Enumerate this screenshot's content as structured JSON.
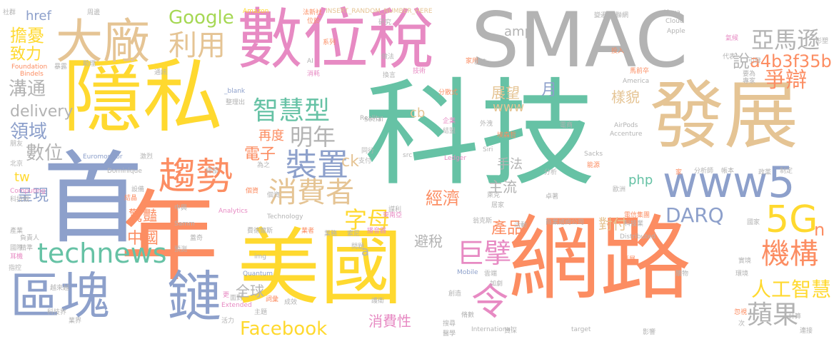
{
  "palette": {
    "teal": "#66c2a5",
    "orange": "#fc8d62",
    "blue": "#8da0cb",
    "pink": "#e78ac3",
    "green": "#a6d854",
    "yellow": "#ffd92f",
    "tan": "#e5c494",
    "gray": "#b3b3b3"
  },
  "words": {
    "w01": "科技",
    "w02": "SMAC",
    "w03": "網路",
    "w04": "美國",
    "w05": "年",
    "w06": "首",
    "w07": "隱私",
    "w08": "數位稅",
    "w09": "發展",
    "w10": "大廠",
    "w11": "區塊",
    "w12": "鏈",
    "w13": "www5",
    "w14": "趨勢",
    "w15": "5G",
    "w16": "technews",
    "w17": "消費者",
    "w18": "亞馬遜",
    "w19": "利用",
    "w20": "機構",
    "w21": "Facebook",
    "w22": "智慧型",
    "w23": "裝置",
    "w24": "明年",
    "w25": "蘋果",
    "w26": "人工智慧",
    "w27": "巨擘",
    "w28": "令",
    "w29": "a4b3f35b",
    "w30": "DARQ",
    "w31": "Google",
    "w32": "爭辯",
    "w33": "溝通",
    "w34": "delivery",
    "w35": "領域",
    "w36": "數位",
    "w37": "擔憂",
    "w38": "致力",
    "w39": "href",
    "w40": "字母",
    "w41": "中國",
    "w42": "經濟",
    "w43": "產品",
    "w44": "對付",
    "w45": "全球",
    "w46": "消費性",
    "w47": "展望",
    "w48": "樣貌",
    "w49": "月",
    "w50": "www",
    "w51": "amp",
    "w52": "說",
    "w53": "再度",
    "w54": "電子",
    "w55": "ck",
    "w56": "php",
    "w57": "主流",
    "w58": "手法",
    "w59": "避稅",
    "w60": "呈現",
    "w61": "驚豔",
    "w62": "tw",
    "w63": "cb",
    "w64": "n",
    "w65": "a",
    "w66": "INSERT_RANDOM_NUMBER_HERE",
    "w67": "Amazon",
    "w68": "Alexa",
    "w69": "Cloud",
    "w70": "Apple",
    "w71": "社群",
    "w72": "周邊",
    "w73": "法新社",
    "w74": "位於",
    "w75": "變遷",
    "w76": "聯網",
    "w77": "氣候",
    "w78": "形塑",
    "w79": "Foundation",
    "w80": "Bindels",
    "w81": "暴露",
    "w82": "助理",
    "w83": "通訊",
    "w84": "系列",
    "w85": "研究",
    "w86": "做法",
    "w87": "AI",
    "w88": "消耗",
    "w89": "技術",
    "w90": "家用",
    "w91": "標準",
    "w92": "投入",
    "w93": "代表",
    "w94": "引發",
    "w95": "專家",
    "w96": "馬前卒",
    "w97": "要為",
    "w98": "America",
    "w99": "_blank",
    "w100": "整理出",
    "w101": "換言",
    "w102": "分散式",
    "w103": "Reality",
    "w104": "Social",
    "w105": "企業",
    "w106": "外洩",
    "w107": "結盟",
    "w108": "埃森哲",
    "w109": "電商",
    "w110": "AirPods",
    "w111": "Accenture",
    "w112": "Siri",
    "w113": "Ledger",
    "w114": "同行",
    "w115": "支付",
    "w116": "Sacks",
    "w117": "Euromonitor",
    "w118": "Dominique",
    "w119": "激烈",
    "w120": "總部",
    "w121": "為之",
    "w122": "Computing",
    "w123": "科技戰",
    "w124": "分析",
    "w125": "能源",
    "w126": "分析師",
    "w127": "帳本",
    "w128": "政黨",
    "w129": "制定",
    "w130": "歐洲",
    "w131": "卓著",
    "w132": "家",
    "w133": "朋友",
    "w134": "北京",
    "w135": "src",
    "w136": "設備",
    "w137": "結晶",
    "w138": "中興",
    "w139": "Samm",
    "w140": "個資",
    "w141": "Technology",
    "w142": "Analytics",
    "w143": "翁克斯",
    "w144": "電信集團",
    "w145": "科技業",
    "w146": "商業諮詢公司",
    "w147": "活動",
    "w148": "居家",
    "w149": "播音器",
    "w150": "業者",
    "w151": "索尼",
    "w152": "負責人",
    "w153": "蓋奇",
    "w154": "產業",
    "w155": "費德爾斯",
    "w156": "國際",
    "w157": "耳機",
    "w158": "精準",
    "w159": "預測",
    "w160": "指控",
    "w161": "img",
    "w162": "Quantum",
    "w163": "Mobile",
    "w164": "雲端",
    "w165": "加劇",
    "w166": "延展",
    "w167": "環境",
    "w168": "越來越",
    "w169": "更",
    "w170": "Extended",
    "w171": "詞彙",
    "w172": "主題",
    "w173": "面對",
    "w174": "業界",
    "w175": "活力",
    "w176": "成效",
    "w177": "搜尋",
    "w178": "International",
    "w179": "資深",
    "w180": "target",
    "w181": "影響",
    "w182": "次",
    "w183": "計算",
    "w184": "連接",
    "w185": "實境",
    "w186": "購物",
    "w187": "忽視",
    "w188": "醫學",
    "w189": "創造",
    "w190": "脩數",
    "w191": "萊克",
    "w192": "謀利",
    "w193": "個資",
    "w194": "Distributed",
    "w195": "科技界",
    "w196": "國家",
    "w197": "東南亞",
    "w198": "業務",
    "w199": "護衛",
    "w200": "問題"
  }
}
